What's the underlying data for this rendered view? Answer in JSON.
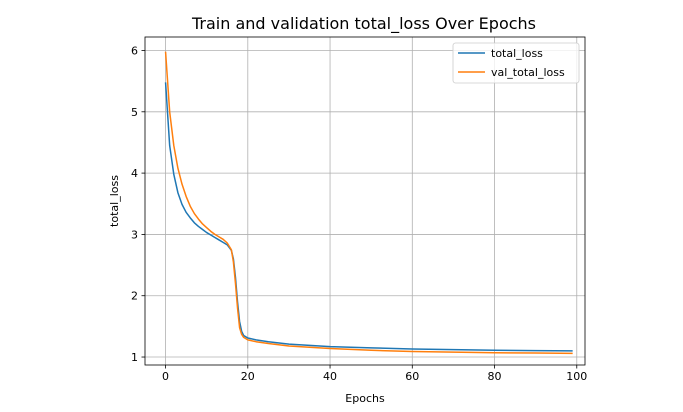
{
  "chart_data": {
    "type": "line",
    "title": "Train and validation total_loss Over Epochs",
    "xlabel": "Epochs",
    "ylabel": "total_loss",
    "xlim": [
      -5,
      102
    ],
    "ylim": [
      0.87,
      6.22
    ],
    "xticks": [
      0,
      20,
      40,
      60,
      80,
      100
    ],
    "yticks": [
      1,
      2,
      3,
      4,
      5,
      6
    ],
    "grid": true,
    "legend_position": "top-right",
    "series": [
      {
        "name": "total_loss",
        "color": "#1f77b4",
        "points": [
          [
            0,
            5.48
          ],
          [
            1,
            4.45
          ],
          [
            2,
            3.98
          ],
          [
            3,
            3.68
          ],
          [
            4,
            3.49
          ],
          [
            5,
            3.36
          ],
          [
            6,
            3.27
          ],
          [
            7,
            3.19
          ],
          [
            8,
            3.13
          ],
          [
            9,
            3.08
          ],
          [
            10,
            3.03
          ],
          [
            11,
            2.99
          ],
          [
            12,
            2.95
          ],
          [
            13,
            2.91
          ],
          [
            14,
            2.87
          ],
          [
            15,
            2.83
          ],
          [
            16,
            2.74
          ],
          [
            16.5,
            2.6
          ],
          [
            17,
            2.3
          ],
          [
            17.5,
            1.9
          ],
          [
            18,
            1.58
          ],
          [
            18.5,
            1.42
          ],
          [
            19,
            1.35
          ],
          [
            20,
            1.31
          ],
          [
            22,
            1.28
          ],
          [
            25,
            1.25
          ],
          [
            30,
            1.21
          ],
          [
            35,
            1.19
          ],
          [
            40,
            1.17
          ],
          [
            50,
            1.15
          ],
          [
            60,
            1.13
          ],
          [
            70,
            1.12
          ],
          [
            80,
            1.11
          ],
          [
            90,
            1.105
          ],
          [
            99,
            1.1
          ]
        ]
      },
      {
        "name": "val_total_loss",
        "color": "#ff7f0e",
        "points": [
          [
            0,
            5.98
          ],
          [
            1,
            5.0
          ],
          [
            2,
            4.45
          ],
          [
            3,
            4.08
          ],
          [
            4,
            3.82
          ],
          [
            5,
            3.62
          ],
          [
            6,
            3.46
          ],
          [
            7,
            3.34
          ],
          [
            8,
            3.25
          ],
          [
            9,
            3.17
          ],
          [
            10,
            3.11
          ],
          [
            11,
            3.05
          ],
          [
            12,
            3.0
          ],
          [
            13,
            2.96
          ],
          [
            14,
            2.92
          ],
          [
            15,
            2.86
          ],
          [
            16,
            2.75
          ],
          [
            16.5,
            2.55
          ],
          [
            17,
            2.2
          ],
          [
            17.5,
            1.8
          ],
          [
            18,
            1.48
          ],
          [
            18.5,
            1.37
          ],
          [
            19,
            1.32
          ],
          [
            20,
            1.28
          ],
          [
            22,
            1.25
          ],
          [
            25,
            1.22
          ],
          [
            30,
            1.18
          ],
          [
            35,
            1.16
          ],
          [
            40,
            1.14
          ],
          [
            50,
            1.11
          ],
          [
            60,
            1.09
          ],
          [
            70,
            1.08
          ],
          [
            80,
            1.07
          ],
          [
            90,
            1.065
          ],
          [
            99,
            1.06
          ]
        ]
      }
    ]
  }
}
